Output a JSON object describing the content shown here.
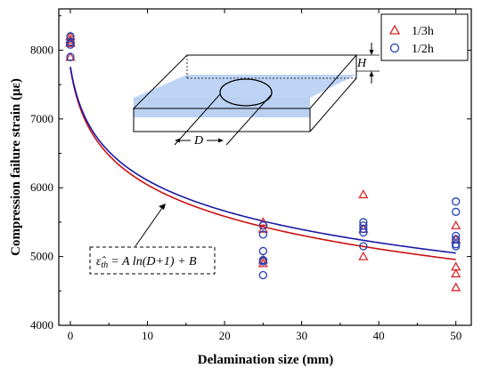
{
  "chart_data": {
    "type": "scatter",
    "xlabel": "Delamination size (mm)",
    "ylabel": "Compression failure strain (με)",
    "xlim": [
      -1.5,
      52
    ],
    "ylim": [
      4000,
      8600
    ],
    "xticks": [
      0,
      10,
      20,
      30,
      40,
      50
    ],
    "yticks": [
      4000,
      5000,
      6000,
      7000,
      8000
    ],
    "grid": false,
    "legend": "top-right",
    "series": [
      {
        "name": "1/3h",
        "marker": "triangle",
        "color": "#d62728",
        "points": [
          [
            0,
            8200
          ],
          [
            0,
            8150
          ],
          [
            0,
            8120
          ],
          [
            0,
            8100
          ],
          [
            0,
            7900
          ],
          [
            25,
            5500
          ],
          [
            25,
            5400
          ],
          [
            25,
            4950
          ],
          [
            25,
            4900
          ],
          [
            38,
            5900
          ],
          [
            38,
            5400
          ],
          [
            38,
            5000
          ],
          [
            50,
            5450
          ],
          [
            50,
            5250
          ],
          [
            50,
            4850
          ],
          [
            50,
            4750
          ],
          [
            50,
            4550
          ]
        ]
      },
      {
        "name": "1/2h",
        "marker": "circle",
        "color": "#1f3fb4",
        "points": [
          [
            0,
            8200
          ],
          [
            0,
            8120
          ],
          [
            0,
            8080
          ],
          [
            0,
            7900
          ],
          [
            25,
            5450
          ],
          [
            25,
            5320
          ],
          [
            25,
            5080
          ],
          [
            25,
            4950
          ],
          [
            25,
            4930
          ],
          [
            25,
            4730
          ],
          [
            38,
            5500
          ],
          [
            38,
            5450
          ],
          [
            38,
            5400
          ],
          [
            38,
            5350
          ],
          [
            38,
            5150
          ],
          [
            50,
            5800
          ],
          [
            50,
            5650
          ],
          [
            50,
            5300
          ],
          [
            50,
            5250
          ],
          [
            50,
            5180
          ],
          [
            50,
            5150
          ]
        ]
      }
    ],
    "fits": [
      {
        "color": "#cc1111",
        "A": -708,
        "B": 7740
      },
      {
        "color": "#1a1aa8",
        "A": -689,
        "B": 7760
      }
    ],
    "annotations": {
      "equation": "ε̂",
      "equation_sub": "th",
      "equation_rest": "= A ln(D+1) + B",
      "diagram_H": "H",
      "diagram_D": "D"
    }
  }
}
